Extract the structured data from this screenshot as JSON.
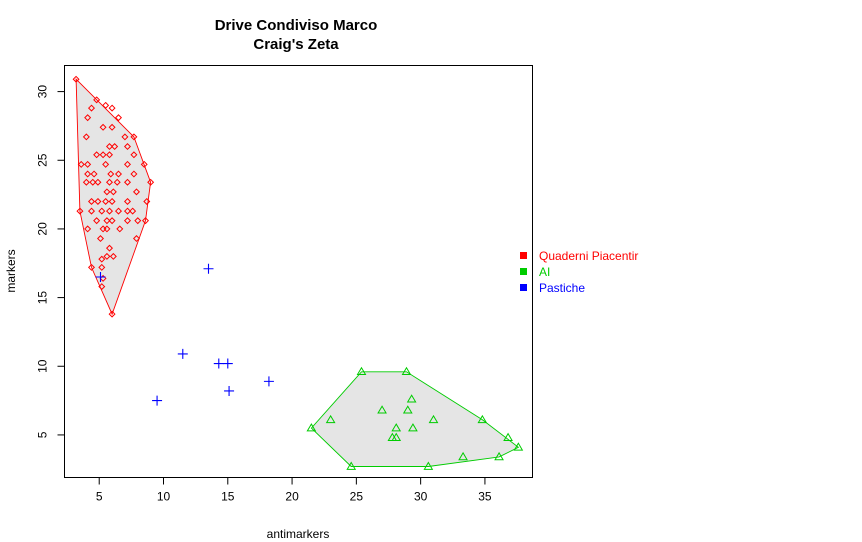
{
  "chart_data": {
    "type": "scatter",
    "title": [
      "Drive Condiviso Marco",
      "Craig's Zeta"
    ],
    "xlabel": "antimarkers",
    "ylabel": "markers",
    "xlim": [
      2.3,
      38.7
    ],
    "ylim": [
      1.9,
      31.9
    ],
    "xticks": [
      5,
      10,
      15,
      20,
      25,
      30,
      35
    ],
    "yticks": [
      5,
      10,
      15,
      20,
      25,
      30
    ],
    "grid": false,
    "legend_position": "right",
    "hull_fill": "#e5e5e5",
    "series": [
      {
        "name": "Quaderni Piacentir",
        "color": "#ff0000",
        "marker": "diamond",
        "hull": true,
        "points": [
          [
            3.2,
            30.9
          ],
          [
            4.8,
            29.4
          ],
          [
            4.4,
            28.8
          ],
          [
            5.5,
            29.0
          ],
          [
            6.0,
            28.8
          ],
          [
            4.1,
            28.1
          ],
          [
            6.5,
            28.1
          ],
          [
            5.3,
            27.4
          ],
          [
            6.0,
            27.4
          ],
          [
            7.7,
            26.7
          ],
          [
            4.0,
            26.7
          ],
          [
            7.0,
            26.7
          ],
          [
            5.8,
            26.0
          ],
          [
            6.2,
            26.0
          ],
          [
            7.2,
            26.0
          ],
          [
            4.8,
            25.4
          ],
          [
            5.3,
            25.4
          ],
          [
            5.8,
            25.4
          ],
          [
            7.7,
            25.4
          ],
          [
            3.6,
            24.7
          ],
          [
            4.1,
            24.7
          ],
          [
            5.5,
            24.7
          ],
          [
            7.2,
            24.7
          ],
          [
            8.5,
            24.7
          ],
          [
            4.1,
            24.0
          ],
          [
            4.6,
            24.0
          ],
          [
            5.9,
            24.0
          ],
          [
            6.5,
            24.0
          ],
          [
            7.7,
            24.0
          ],
          [
            4.0,
            23.4
          ],
          [
            4.5,
            23.4
          ],
          [
            4.9,
            23.4
          ],
          [
            5.8,
            23.4
          ],
          [
            6.4,
            23.4
          ],
          [
            7.2,
            23.4
          ],
          [
            9.0,
            23.4
          ],
          [
            5.6,
            22.7
          ],
          [
            6.1,
            22.7
          ],
          [
            7.9,
            22.7
          ],
          [
            4.4,
            22.0
          ],
          [
            4.9,
            22.0
          ],
          [
            5.5,
            22.0
          ],
          [
            6.0,
            22.0
          ],
          [
            7.2,
            22.0
          ],
          [
            8.7,
            22.0
          ],
          [
            3.5,
            21.3
          ],
          [
            4.4,
            21.3
          ],
          [
            5.2,
            21.3
          ],
          [
            5.8,
            21.3
          ],
          [
            6.5,
            21.3
          ],
          [
            7.2,
            21.3
          ],
          [
            7.6,
            21.3
          ],
          [
            4.8,
            20.6
          ],
          [
            5.6,
            20.6
          ],
          [
            6.0,
            20.6
          ],
          [
            7.2,
            20.6
          ],
          [
            8.0,
            20.6
          ],
          [
            8.6,
            20.6
          ],
          [
            4.1,
            20.0
          ],
          [
            5.3,
            20.0
          ],
          [
            5.6,
            20.0
          ],
          [
            6.6,
            20.0
          ],
          [
            7.9,
            19.3
          ],
          [
            5.1,
            19.3
          ],
          [
            5.8,
            18.6
          ],
          [
            5.6,
            18.0
          ],
          [
            6.1,
            18.0
          ],
          [
            5.2,
            17.8
          ],
          [
            4.4,
            17.2
          ],
          [
            5.2,
            17.2
          ],
          [
            5.3,
            16.4
          ],
          [
            5.2,
            15.8
          ],
          [
            6.0,
            13.8
          ]
        ],
        "hull_vertices": [
          [
            3.2,
            30.9
          ],
          [
            7.7,
            26.7
          ],
          [
            9.0,
            23.4
          ],
          [
            8.6,
            20.6
          ],
          [
            6.0,
            13.8
          ],
          [
            4.4,
            17.2
          ],
          [
            3.5,
            21.3
          ]
        ]
      },
      {
        "name": "AI",
        "color": "#00cc00",
        "marker": "triangle",
        "hull": true,
        "points": [
          [
            25.4,
            9.6
          ],
          [
            28.9,
            9.6
          ],
          [
            29.3,
            7.6
          ],
          [
            27.0,
            6.8
          ],
          [
            29.0,
            6.8
          ],
          [
            23.0,
            6.1
          ],
          [
            31.0,
            6.1
          ],
          [
            34.8,
            6.1
          ],
          [
            21.5,
            5.5
          ],
          [
            28.1,
            5.5
          ],
          [
            29.4,
            5.5
          ],
          [
            27.8,
            4.8
          ],
          [
            28.1,
            4.8
          ],
          [
            36.8,
            4.8
          ],
          [
            37.6,
            4.1
          ],
          [
            33.3,
            3.4
          ],
          [
            36.1,
            3.4
          ],
          [
            24.6,
            2.7
          ],
          [
            30.6,
            2.7
          ]
        ],
        "hull_vertices": [
          [
            25.4,
            9.6
          ],
          [
            28.9,
            9.6
          ],
          [
            34.8,
            6.1
          ],
          [
            37.6,
            4.1
          ],
          [
            36.1,
            3.4
          ],
          [
            30.6,
            2.7
          ],
          [
            24.6,
            2.7
          ],
          [
            21.5,
            5.5
          ]
        ]
      },
      {
        "name": "Pastiche",
        "color": "#0000ff",
        "marker": "plus",
        "hull": false,
        "points": [
          [
            5.1,
            16.5
          ],
          [
            13.5,
            17.1
          ],
          [
            11.5,
            10.9
          ],
          [
            14.3,
            10.2
          ],
          [
            15.0,
            10.2
          ],
          [
            18.2,
            8.9
          ],
          [
            15.1,
            8.2
          ],
          [
            9.5,
            7.5
          ]
        ]
      }
    ]
  }
}
